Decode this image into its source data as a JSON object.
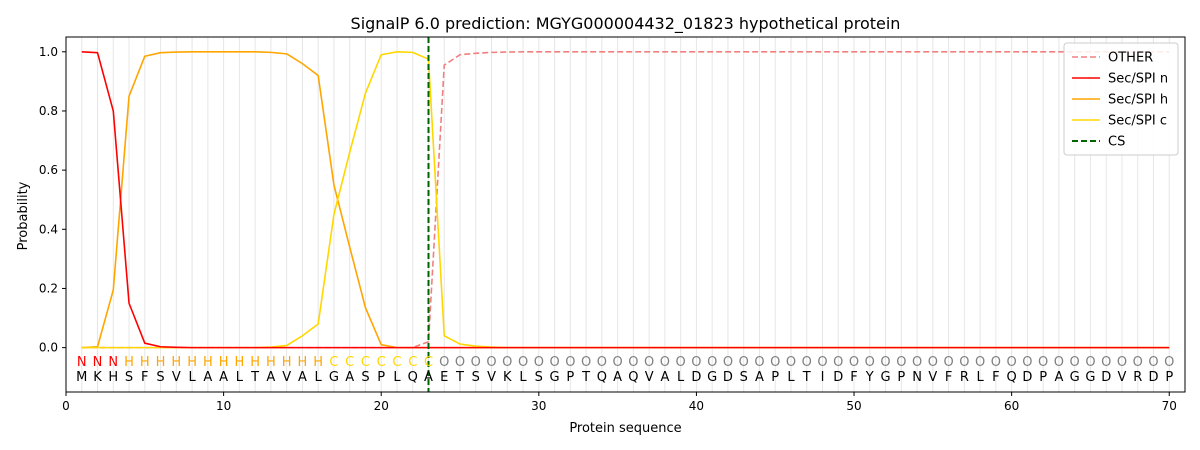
{
  "chart_data": {
    "type": "line",
    "title": "SignalP 6.0 prediction: MGYG000004432_01823 hypothetical protein",
    "xlabel": "Protein sequence",
    "ylabel": "Probability",
    "xlim": [
      0,
      71
    ],
    "ylim": [
      -0.15,
      1.05
    ],
    "xticks": [
      0,
      10,
      20,
      30,
      40,
      50,
      60,
      70
    ],
    "yticks": [
      0.0,
      0.2,
      0.4,
      0.6,
      0.8,
      1.0
    ],
    "xtick_labels": [
      "0",
      "10",
      "20",
      "30",
      "40",
      "50",
      "60",
      "70"
    ],
    "ytick_labels": [
      "0.0",
      "0.2",
      "0.4",
      "0.6",
      "0.8",
      "1.0"
    ],
    "grid": "vertical lines at each residue",
    "legend_position": "top-right",
    "sequence": [
      "M",
      "K",
      "H",
      "S",
      "F",
      "S",
      "V",
      "L",
      "A",
      "A",
      "L",
      "T",
      "A",
      "V",
      "A",
      "L",
      "G",
      "A",
      "S",
      "P",
      "L",
      "Q",
      "A",
      "E",
      "T",
      "S",
      "V",
      "K",
      "L",
      "S",
      "G",
      "P",
      "T",
      "Q",
      "A",
      "Q",
      "V",
      "A",
      "L",
      "D",
      "G",
      "D",
      "S",
      "A",
      "P",
      "L",
      "T",
      "I",
      "D",
      "F",
      "Y",
      "G",
      "P",
      "N",
      "V",
      "F",
      "R",
      "L",
      "F",
      "Q",
      "D",
      "P",
      "A",
      "G",
      "G",
      "D",
      "V",
      "R",
      "D",
      "P"
    ],
    "region_labels": [
      "N",
      "N",
      "N",
      "H",
      "H",
      "H",
      "H",
      "H",
      "H",
      "H",
      "H",
      "H",
      "H",
      "H",
      "H",
      "H",
      "C",
      "C",
      "C",
      "C",
      "C",
      "C",
      "C",
      "O",
      "O",
      "O",
      "O",
      "O",
      "O",
      "O",
      "O",
      "O",
      "O",
      "O",
      "O",
      "O",
      "O",
      "O",
      "O",
      "O",
      "O",
      "O",
      "O",
      "O",
      "O",
      "O",
      "O",
      "O",
      "O",
      "O",
      "O",
      "O",
      "O",
      "O",
      "O",
      "O",
      "O",
      "O",
      "O",
      "O",
      "O",
      "O",
      "O",
      "O",
      "O",
      "O",
      "O",
      "O",
      "O",
      "O"
    ],
    "region_colors": {
      "N": "#ff0000",
      "H": "#ffa500",
      "C": "#ffd700",
      "O": "#808080"
    },
    "series": [
      {
        "name": "OTHER",
        "color": "#f08080",
        "dash": "dashed",
        "values": [
          0,
          0,
          0,
          0,
          0,
          0,
          0,
          0,
          0,
          0,
          0,
          0,
          0,
          0,
          0,
          0,
          0,
          0,
          0,
          0,
          0,
          0,
          0.02,
          0.955,
          0.99,
          0.995,
          0.998,
          0.999,
          1,
          1,
          1,
          1,
          1,
          1,
          1,
          1,
          1,
          1,
          1,
          1,
          1,
          1,
          1,
          1,
          1,
          1,
          1,
          1,
          1,
          1,
          1,
          1,
          1,
          1,
          1,
          1,
          1,
          1,
          1,
          1,
          1,
          1,
          1,
          1,
          1,
          1,
          1,
          1,
          1,
          1
        ]
      },
      {
        "name": "Sec/SPI n",
        "color": "#ff0000",
        "dash": "solid",
        "values": [
          1.0,
          0.997,
          0.8,
          0.15,
          0.015,
          0.003,
          0.001,
          0,
          0,
          0,
          0,
          0,
          0,
          0,
          0,
          0,
          0,
          0,
          0,
          0,
          0,
          0,
          0,
          0,
          0,
          0,
          0,
          0,
          0,
          0,
          0,
          0,
          0,
          0,
          0,
          0,
          0,
          0,
          0,
          0,
          0,
          0,
          0,
          0,
          0,
          0,
          0,
          0,
          0,
          0,
          0,
          0,
          0,
          0,
          0,
          0,
          0,
          0,
          0,
          0,
          0,
          0,
          0,
          0,
          0,
          0,
          0,
          0,
          0,
          0
        ]
      },
      {
        "name": "Sec/SPI h",
        "color": "#ffa500",
        "dash": "solid",
        "values": [
          0,
          0.003,
          0.195,
          0.85,
          0.985,
          0.997,
          0.999,
          1,
          1,
          1,
          1,
          1,
          0.998,
          0.993,
          0.96,
          0.92,
          0.55,
          0.34,
          0.135,
          0.01,
          0,
          0,
          0,
          0,
          0,
          0,
          0,
          0,
          0,
          0,
          0,
          0,
          0,
          0,
          0,
          0,
          0,
          0,
          0,
          0,
          0,
          0,
          0,
          0,
          0,
          0,
          0,
          0,
          0,
          0,
          0,
          0,
          0,
          0,
          0,
          0,
          0,
          0,
          0,
          0,
          0,
          0,
          0,
          0,
          0,
          0,
          0,
          0,
          0,
          0
        ]
      },
      {
        "name": "Sec/SPI c",
        "color": "#ffd700",
        "dash": "solid",
        "values": [
          0,
          0,
          0,
          0,
          0,
          0,
          0,
          0,
          0,
          0,
          0,
          0,
          0.002,
          0.007,
          0.04,
          0.08,
          0.45,
          0.66,
          0.86,
          0.99,
          1.0,
          0.998,
          0.975,
          0.04,
          0.012,
          0.005,
          0.002,
          0,
          0,
          0,
          0,
          0,
          0,
          0,
          0,
          0,
          0,
          0,
          0,
          0,
          0,
          0,
          0,
          0,
          0,
          0,
          0,
          0,
          0,
          0,
          0,
          0,
          0,
          0,
          0,
          0,
          0,
          0,
          0,
          0,
          0,
          0,
          0,
          0,
          0,
          0,
          0,
          0,
          0,
          0
        ]
      },
      {
        "name": "CS",
        "color": "#006400",
        "dash": "dashed",
        "x": 23
      }
    ]
  }
}
